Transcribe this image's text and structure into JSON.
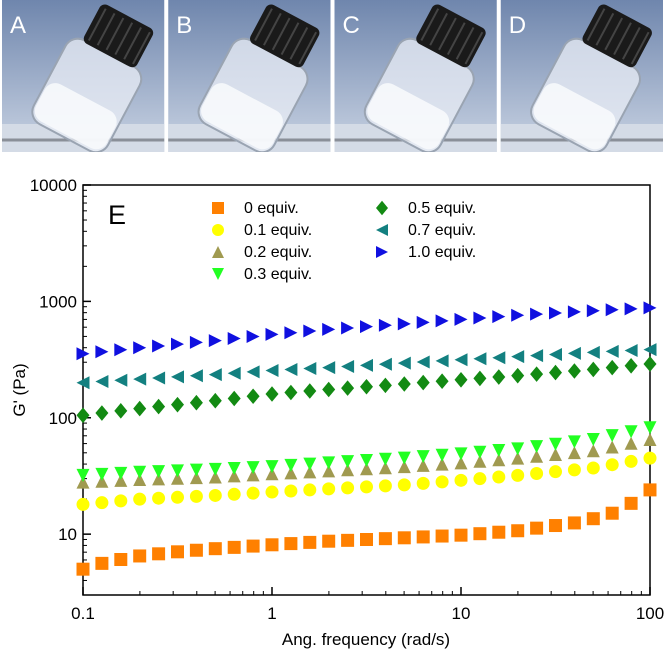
{
  "photos": {
    "labels": [
      "A",
      "B",
      "C",
      "D"
    ],
    "colors": {
      "background_top": "#6f86ad",
      "background_bottom": "#c9d3e3",
      "cap": "#1a1a1a",
      "glass": "#e9eef5"
    }
  },
  "chart_data": {
    "type": "scatter",
    "panel_label": "E",
    "xlabel": "Ang. frequency (rad/s)",
    "ylabel": "G' (Pa)",
    "xscale": "log",
    "yscale": "log",
    "xlim": [
      0.1,
      100
    ],
    "ylim": [
      3,
      10000
    ],
    "x_ticks": [
      "0.1",
      "1",
      "10",
      "100"
    ],
    "y_ticks": [
      "10",
      "100",
      "1000",
      "10000"
    ],
    "grid": false,
    "legend_position": "top",
    "series": [
      {
        "name": "0 equiv.",
        "marker": "square",
        "color": "#ff8000",
        "x": [
          0.1,
          0.13,
          0.2,
          0.3,
          0.5,
          1,
          2,
          5,
          10,
          20,
          40,
          60,
          80,
          100
        ],
        "y": [
          5,
          5.7,
          6.5,
          7,
          7.5,
          8.1,
          8.7,
          9.3,
          9.8,
          10.7,
          12.5,
          14.5,
          18.5,
          24
        ]
      },
      {
        "name": "0.1 equiv.",
        "marker": "circle",
        "color": "#ffff00",
        "x": [
          0.1,
          0.2,
          0.5,
          1,
          2,
          5,
          10,
          20,
          50,
          100
        ],
        "y": [
          18,
          20,
          21.5,
          23,
          24.5,
          26.5,
          29,
          32,
          37,
          45
        ]
      },
      {
        "name": "0.2 equiv.",
        "marker": "triangle-up",
        "color": "#a09a50",
        "x": [
          0.1,
          0.2,
          0.5,
          1,
          2,
          5,
          10,
          20,
          50,
          100
        ],
        "y": [
          28,
          29.5,
          31,
          33,
          35,
          38,
          41,
          45,
          52,
          65
        ]
      },
      {
        "name": "0.3 equiv.",
        "marker": "triangle-down",
        "color": "#22ff22",
        "x": [
          0.1,
          0.2,
          0.5,
          1,
          2,
          5,
          10,
          20,
          50,
          100
        ],
        "y": [
          32,
          34,
          36,
          38,
          41,
          45,
          49,
          54,
          65,
          82
        ]
      },
      {
        "name": "0.5 equiv.",
        "marker": "diamond",
        "color": "#138a13",
        "x": [
          0.1,
          0.2,
          0.5,
          1,
          2,
          5,
          10,
          20,
          50,
          100
        ],
        "y": [
          105,
          120,
          140,
          160,
          175,
          195,
          212,
          230,
          260,
          290
        ]
      },
      {
        "name": "0.7 equiv.",
        "marker": "triangle-left",
        "color": "#138080",
        "x": [
          0.1,
          0.2,
          0.5,
          1,
          2,
          5,
          10,
          20,
          50,
          100
        ],
        "y": [
          200,
          215,
          235,
          255,
          270,
          295,
          315,
          335,
          365,
          385
        ]
      },
      {
        "name": "1.0 equiv.",
        "marker": "triangle-right",
        "color": "#1010e0",
        "x": [
          0.1,
          0.2,
          0.5,
          1,
          2,
          5,
          10,
          20,
          50,
          100
        ],
        "y": [
          355,
          400,
          460,
          520,
          575,
          640,
          700,
          760,
          830,
          880
        ]
      }
    ]
  }
}
